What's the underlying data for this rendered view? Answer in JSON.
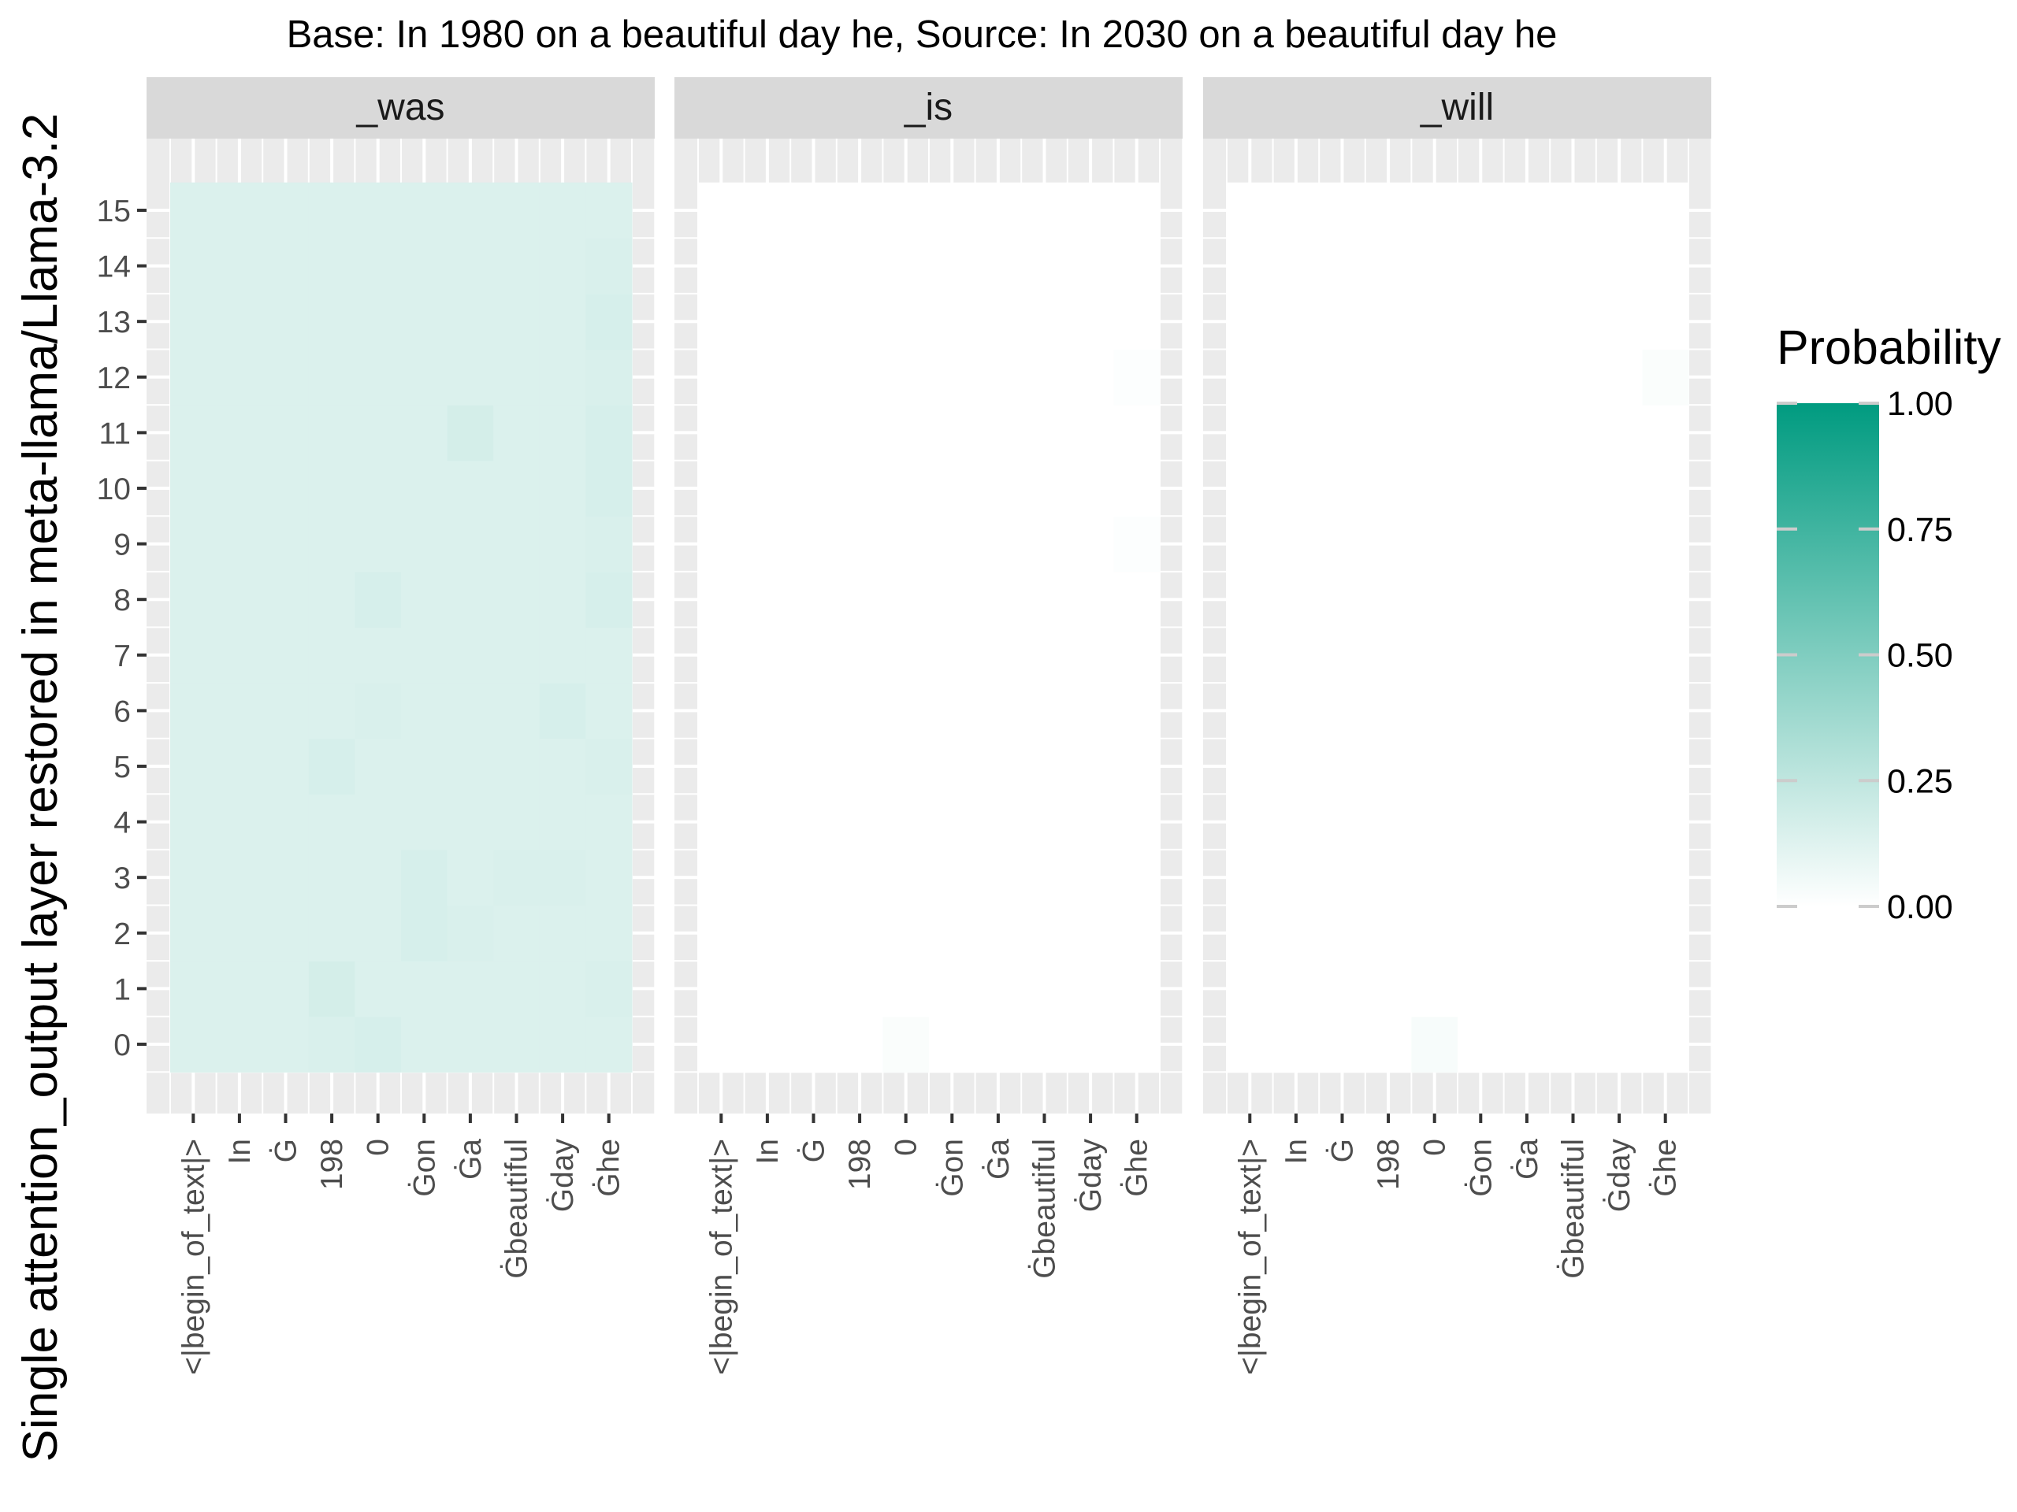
{
  "chart_data": {
    "type": "heatmap",
    "title": "Base: In 1980 on a beautiful day he, Source: In 2030 on a beautiful day he",
    "ylabel": "Single attention_output layer restored in meta-llama/Llama-3.2",
    "xlabel": "",
    "facets": [
      "_was",
      "_is",
      "_will"
    ],
    "x_categories": [
      "<|begin_of_text|>",
      "In",
      "Ġ",
      "198",
      "0",
      "Ġon",
      "Ġa",
      "Ġbeautiful",
      "Ġday",
      "Ġhe"
    ],
    "y_categories": [
      0,
      1,
      2,
      3,
      4,
      5,
      6,
      7,
      8,
      9,
      10,
      11,
      12,
      13,
      14,
      15
    ],
    "legend": {
      "title": "Probability",
      "range": [
        0,
        1
      ],
      "breaks": [
        1.0,
        0.75,
        0.5,
        0.25,
        0.0
      ],
      "break_labels": [
        "1.00",
        "0.75",
        "0.50",
        "0.25",
        "0.00"
      ],
      "colors": {
        "low": "#ffffff",
        "high": "#009b80"
      },
      "placement": "right"
    },
    "grid": true,
    "panels": [
      {
        "facet": "_was",
        "values": [
          [
            0.14,
            0.14,
            0.14,
            0.15,
            0.16,
            0.14,
            0.14,
            0.14,
            0.14,
            0.14
          ],
          [
            0.14,
            0.14,
            0.14,
            0.17,
            0.14,
            0.14,
            0.14,
            0.14,
            0.14,
            0.15
          ],
          [
            0.14,
            0.14,
            0.14,
            0.14,
            0.14,
            0.16,
            0.15,
            0.14,
            0.14,
            0.14
          ],
          [
            0.14,
            0.14,
            0.14,
            0.14,
            0.14,
            0.16,
            0.14,
            0.15,
            0.15,
            0.14
          ],
          [
            0.14,
            0.14,
            0.14,
            0.14,
            0.14,
            0.14,
            0.14,
            0.14,
            0.14,
            0.14
          ],
          [
            0.14,
            0.14,
            0.14,
            0.16,
            0.14,
            0.14,
            0.14,
            0.14,
            0.14,
            0.15
          ],
          [
            0.14,
            0.14,
            0.14,
            0.14,
            0.15,
            0.14,
            0.14,
            0.14,
            0.16,
            0.14
          ],
          [
            0.14,
            0.14,
            0.14,
            0.14,
            0.14,
            0.14,
            0.14,
            0.14,
            0.14,
            0.14
          ],
          [
            0.14,
            0.14,
            0.14,
            0.14,
            0.16,
            0.14,
            0.14,
            0.14,
            0.14,
            0.16
          ],
          [
            0.14,
            0.14,
            0.14,
            0.14,
            0.14,
            0.14,
            0.14,
            0.14,
            0.14,
            0.15
          ],
          [
            0.14,
            0.14,
            0.14,
            0.14,
            0.14,
            0.14,
            0.14,
            0.14,
            0.14,
            0.16
          ],
          [
            0.14,
            0.14,
            0.14,
            0.14,
            0.14,
            0.14,
            0.17,
            0.14,
            0.14,
            0.16
          ],
          [
            0.14,
            0.14,
            0.14,
            0.14,
            0.14,
            0.14,
            0.14,
            0.14,
            0.14,
            0.15
          ],
          [
            0.14,
            0.14,
            0.14,
            0.14,
            0.14,
            0.14,
            0.14,
            0.14,
            0.14,
            0.16
          ],
          [
            0.14,
            0.14,
            0.14,
            0.14,
            0.14,
            0.14,
            0.14,
            0.14,
            0.14,
            0.15
          ],
          [
            0.14,
            0.14,
            0.14,
            0.14,
            0.14,
            0.14,
            0.14,
            0.14,
            0.14,
            0.14
          ]
        ]
      },
      {
        "facet": "_is",
        "values": [
          [
            0,
            0,
            0,
            0,
            0.02,
            0,
            0,
            0,
            0,
            0
          ],
          [
            0,
            0,
            0,
            0,
            0,
            0,
            0,
            0,
            0,
            0
          ],
          [
            0,
            0,
            0,
            0,
            0,
            0,
            0,
            0,
            0,
            0
          ],
          [
            0,
            0,
            0,
            0,
            0,
            0,
            0,
            0,
            0,
            0
          ],
          [
            0,
            0,
            0,
            0,
            0,
            0,
            0,
            0,
            0,
            0
          ],
          [
            0,
            0,
            0,
            0,
            0,
            0,
            0,
            0,
            0,
            0
          ],
          [
            0,
            0,
            0,
            0,
            0,
            0,
            0,
            0,
            0,
            0
          ],
          [
            0,
            0,
            0,
            0,
            0,
            0,
            0,
            0,
            0,
            0
          ],
          [
            0,
            0,
            0,
            0,
            0,
            0,
            0,
            0,
            0,
            0
          ],
          [
            0,
            0,
            0,
            0,
            0,
            0,
            0,
            0,
            0,
            0.01
          ],
          [
            0,
            0,
            0,
            0,
            0,
            0,
            0,
            0,
            0,
            0
          ],
          [
            0,
            0,
            0,
            0,
            0,
            0,
            0,
            0,
            0,
            0
          ],
          [
            0,
            0,
            0,
            0,
            0,
            0,
            0,
            0,
            0,
            0.01
          ],
          [
            0,
            0,
            0,
            0,
            0,
            0,
            0,
            0,
            0,
            0
          ],
          [
            0,
            0,
            0,
            0,
            0,
            0,
            0,
            0,
            0,
            0
          ],
          [
            0,
            0,
            0,
            0,
            0,
            0,
            0,
            0,
            0,
            0
          ]
        ]
      },
      {
        "facet": "_will",
        "values": [
          [
            0,
            0,
            0,
            0,
            0.03,
            0,
            0,
            0,
            0,
            0
          ],
          [
            0,
            0,
            0,
            0,
            0,
            0,
            0,
            0,
            0,
            0
          ],
          [
            0,
            0,
            0,
            0,
            0,
            0,
            0,
            0,
            0,
            0
          ],
          [
            0,
            0,
            0,
            0,
            0,
            0,
            0,
            0,
            0,
            0
          ],
          [
            0,
            0,
            0,
            0,
            0,
            0,
            0,
            0,
            0,
            0
          ],
          [
            0,
            0,
            0,
            0,
            0,
            0,
            0,
            0,
            0,
            0
          ],
          [
            0,
            0,
            0,
            0,
            0,
            0,
            0,
            0,
            0,
            0
          ],
          [
            0,
            0,
            0,
            0,
            0,
            0,
            0,
            0,
            0,
            0
          ],
          [
            0,
            0,
            0,
            0,
            0,
            0,
            0,
            0,
            0,
            0
          ],
          [
            0,
            0,
            0,
            0,
            0,
            0,
            0,
            0,
            0,
            0
          ],
          [
            0,
            0,
            0,
            0,
            0,
            0,
            0,
            0,
            0,
            0
          ],
          [
            0,
            0,
            0,
            0,
            0,
            0,
            0,
            0,
            0,
            0
          ],
          [
            0,
            0,
            0,
            0,
            0,
            0,
            0,
            0,
            0,
            0.02
          ],
          [
            0,
            0,
            0,
            0,
            0,
            0,
            0,
            0,
            0,
            0
          ],
          [
            0,
            0,
            0,
            0,
            0,
            0,
            0,
            0,
            0,
            0
          ],
          [
            0,
            0,
            0,
            0,
            0,
            0,
            0,
            0,
            0,
            0
          ]
        ]
      }
    ]
  }
}
